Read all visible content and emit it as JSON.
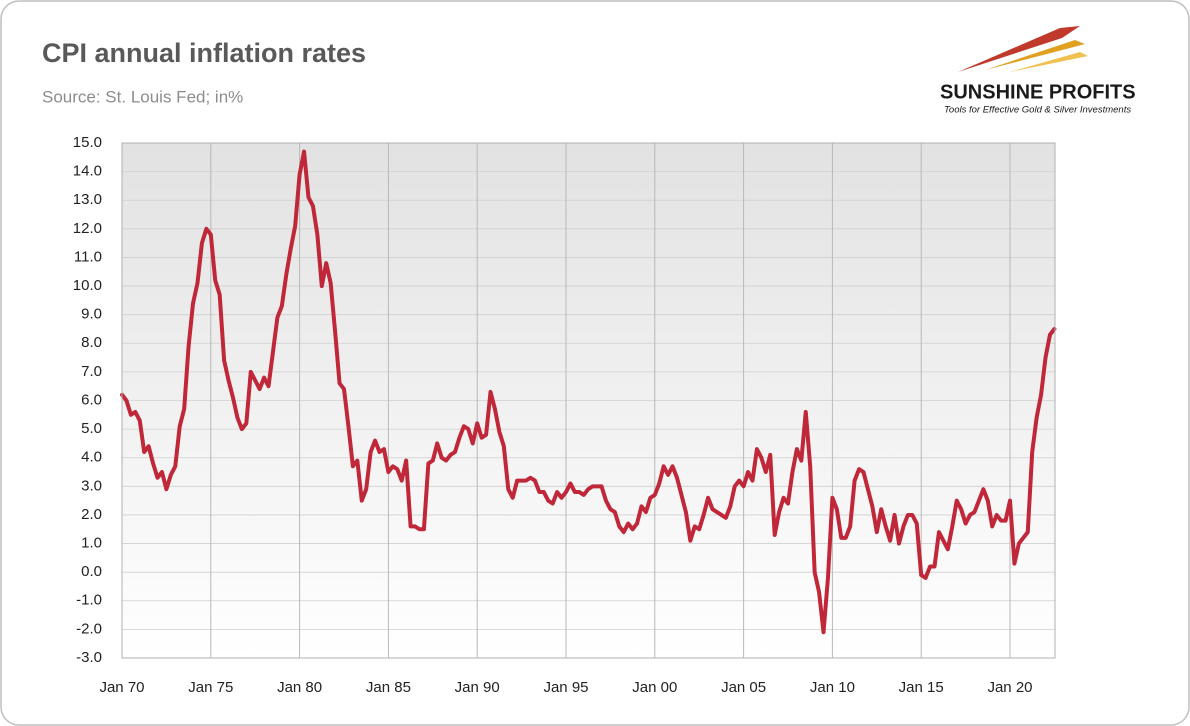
{
  "chart_data": {
    "type": "line",
    "title": "CPI annual inflation rates",
    "subtitle": "Source: St. Louis Fed; in%",
    "logo": {
      "name": "SUNSHINE PROFITS",
      "tagline": "Tools for Effective Gold & Silver Investments"
    },
    "color": "#c0283a",
    "grid": true,
    "ylim": [
      -3,
      15
    ],
    "yticks": [
      {
        "value": -3,
        "label": "-3.0"
      },
      {
        "value": -2,
        "label": "-2.0"
      },
      {
        "value": -1,
        "label": "-1.0"
      },
      {
        "value": 0,
        "label": "0.0"
      },
      {
        "value": 1,
        "label": "1.0"
      },
      {
        "value": 2,
        "label": "2.0"
      },
      {
        "value": 3,
        "label": "3.0"
      },
      {
        "value": 4,
        "label": "4.0"
      },
      {
        "value": 5,
        "label": "5.0"
      },
      {
        "value": 6,
        "label": "6.0"
      },
      {
        "value": 7,
        "label": "7.0"
      },
      {
        "value": 8,
        "label": "8.0"
      },
      {
        "value": 9,
        "label": "9.0"
      },
      {
        "value": 10,
        "label": "10.0"
      },
      {
        "value": 11,
        "label": "11.0"
      },
      {
        "value": 12,
        "label": "12.0"
      },
      {
        "value": 13,
        "label": "13.0"
      },
      {
        "value": 14,
        "label": "14.0"
      },
      {
        "value": 15,
        "label": "15.0"
      }
    ],
    "categories": [
      "Jan 70",
      null,
      null,
      null,
      null,
      null,
      null,
      null,
      null,
      null,
      null,
      null,
      null,
      null,
      null,
      null,
      null,
      null,
      null,
      null,
      "Jan 75",
      null,
      null,
      null,
      null,
      null,
      null,
      null,
      null,
      null,
      null,
      null,
      null,
      null,
      null,
      null,
      null,
      null,
      null,
      null,
      "Jan 80",
      null,
      null,
      null,
      null,
      null,
      null,
      null,
      null,
      null,
      null,
      null,
      null,
      null,
      null,
      null,
      null,
      null,
      null,
      null,
      "Jan 85",
      null,
      null,
      null,
      null,
      null,
      null,
      null,
      null,
      null,
      null,
      null,
      null,
      null,
      null,
      null,
      null,
      null,
      null,
      null,
      "Jan 90",
      null,
      null,
      null,
      null,
      null,
      null,
      null,
      null,
      null,
      null,
      null,
      null,
      null,
      null,
      null,
      null,
      null,
      null,
      null,
      "Jan 95",
      null,
      null,
      null,
      null,
      null,
      null,
      null,
      null,
      null,
      null,
      null,
      null,
      null,
      null,
      null,
      null,
      null,
      null,
      null,
      "Jan 00",
      null,
      null,
      null,
      null,
      null,
      null,
      null,
      null,
      null,
      null,
      null,
      null,
      null,
      null,
      null,
      null,
      null,
      null,
      null,
      "Jan 05",
      null,
      null,
      null,
      null,
      null,
      null,
      null,
      null,
      null,
      null,
      null,
      null,
      null,
      null,
      null,
      null,
      null,
      null,
      null,
      "Jan 10",
      null,
      null,
      null,
      null,
      null,
      null,
      null,
      null,
      null,
      null,
      null,
      null,
      null,
      null,
      null,
      null,
      null,
      null,
      null,
      "Jan 15",
      null,
      null,
      null,
      null,
      null,
      null,
      null,
      null,
      null,
      null,
      null,
      null,
      null,
      null,
      null,
      null,
      null,
      null,
      null,
      "Jan 20",
      null,
      null,
      null,
      null,
      null,
      null,
      null,
      null,
      null,
      null
    ],
    "values": [
      6.2,
      6.0,
      5.5,
      5.6,
      5.3,
      4.2,
      4.4,
      3.8,
      3.3,
      3.5,
      2.9,
      3.4,
      3.7,
      5.1,
      5.7,
      7.9,
      9.4,
      10.1,
      11.5,
      12.0,
      11.8,
      10.2,
      9.7,
      7.4,
      6.7,
      6.1,
      5.4,
      5.0,
      5.2,
      7.0,
      6.7,
      6.4,
      6.8,
      6.5,
      7.7,
      8.9,
      9.3,
      10.4,
      11.3,
      12.1,
      13.9,
      14.7,
      13.1,
      12.8,
      11.8,
      10.0,
      10.8,
      10.1,
      8.4,
      6.6,
      6.4,
      5.1,
      3.7,
      3.9,
      2.5,
      2.9,
      4.2,
      4.6,
      4.2,
      4.3,
      3.5,
      3.7,
      3.6,
      3.2,
      3.9,
      1.6,
      1.6,
      1.5,
      1.5,
      3.8,
      3.9,
      4.5,
      4.0,
      3.9,
      4.1,
      4.2,
      4.7,
      5.1,
      5.0,
      4.5,
      5.2,
      4.7,
      4.8,
      6.3,
      5.7,
      4.9,
      4.4,
      2.9,
      2.6,
      3.2,
      3.2,
      3.2,
      3.3,
      3.2,
      2.8,
      2.8,
      2.5,
      2.4,
      2.8,
      2.6,
      2.8,
      3.1,
      2.8,
      2.8,
      2.7,
      2.9,
      3.0,
      3.0,
      3.0,
      2.5,
      2.2,
      2.1,
      1.6,
      1.4,
      1.7,
      1.5,
      1.7,
      2.3,
      2.1,
      2.6,
      2.7,
      3.1,
      3.7,
      3.4,
      3.7,
      3.3,
      2.7,
      2.1,
      1.1,
      1.6,
      1.5,
      2.0,
      2.6,
      2.2,
      2.1,
      2.0,
      1.9,
      2.3,
      3.0,
      3.2,
      3.0,
      3.5,
      3.2,
      4.3,
      4.0,
      3.5,
      4.1,
      1.3,
      2.1,
      2.6,
      2.4,
      3.5,
      4.3,
      3.9,
      5.6,
      3.7,
      0.0,
      -0.7,
      -2.1,
      -0.2,
      2.6,
      2.2,
      1.2,
      1.2,
      1.6,
      3.2,
      3.6,
      3.5,
      2.9,
      2.3,
      1.4,
      2.2,
      1.6,
      1.1,
      2.0,
      1.0,
      1.6,
      2.0,
      2.0,
      1.7,
      -0.1,
      -0.2,
      0.2,
      0.2,
      1.4,
      1.1,
      0.8,
      1.6,
      2.5,
      2.2,
      1.7,
      2.0,
      2.1,
      2.5,
      2.9,
      2.5,
      1.6,
      2.0,
      1.8,
      1.8,
      2.5,
      0.3,
      1.0,
      1.2,
      1.4,
      4.2,
      5.4,
      6.2,
      7.5,
      8.3,
      8.5
    ]
  }
}
